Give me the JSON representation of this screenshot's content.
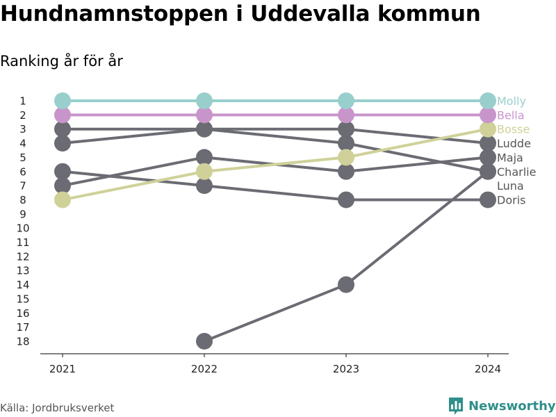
{
  "title": "Hundnamnstoppen i Uddevalla kommun",
  "subtitle": "Ranking år för år",
  "source": "Källa: Jordbruksverket",
  "brand": {
    "name": "Newsworthy",
    "icon": "bar-chart-logo-icon",
    "color": "#2f8f8a"
  },
  "chart_data": {
    "type": "line",
    "x": [
      "2021",
      "2022",
      "2023",
      "2024"
    ],
    "y_ticks": [
      1,
      2,
      3,
      4,
      5,
      6,
      7,
      8,
      9,
      10,
      11,
      12,
      13,
      14,
      15,
      16,
      17,
      18
    ],
    "ylim": [
      1,
      18
    ],
    "y_reversed": true,
    "grid": false,
    "series": [
      {
        "name": "Doris",
        "values": [
          6,
          7,
          8,
          8
        ],
        "color": "#6b6b73",
        "highlight": false
      },
      {
        "name": "Charlie",
        "values": [
          null,
          18,
          14,
          6
        ],
        "color": "#6b6b73",
        "highlight": false
      },
      {
        "name": "Luna",
        "values": [
          3,
          3,
          4,
          6
        ],
        "color": "#6b6b73",
        "highlight": false
      },
      {
        "name": "Maja",
        "values": [
          7,
          5,
          6,
          5
        ],
        "color": "#6b6b73",
        "highlight": false
      },
      {
        "name": "Ludde",
        "values": [
          4,
          3,
          3,
          4
        ],
        "color": "#6b6b73",
        "highlight": false
      },
      {
        "name": "Bosse",
        "values": [
          8,
          6,
          5,
          3
        ],
        "color": "#cfd199",
        "highlight": true
      },
      {
        "name": "Bella",
        "values": [
          2,
          2,
          2,
          2
        ],
        "color": "#c895cb",
        "highlight": true
      },
      {
        "name": "Molly",
        "values": [
          1,
          1,
          1,
          1
        ],
        "color": "#98cfcc",
        "highlight": true
      }
    ]
  }
}
